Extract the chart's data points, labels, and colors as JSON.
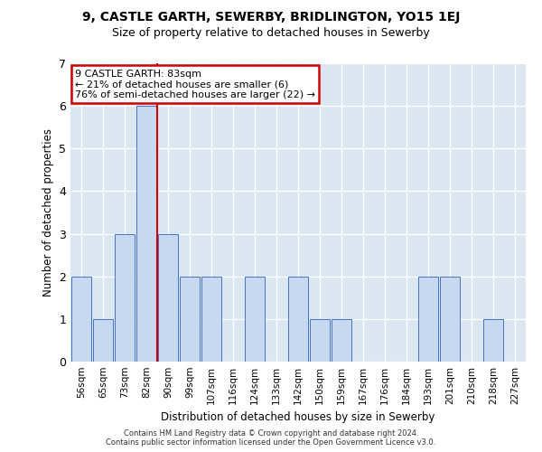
{
  "title1": "9, CASTLE GARTH, SEWERBY, BRIDLINGTON, YO15 1EJ",
  "title2": "Size of property relative to detached houses in Sewerby",
  "xlabel": "Distribution of detached houses by size in Sewerby",
  "ylabel": "Number of detached properties",
  "categories": [
    "56sqm",
    "65sqm",
    "73sqm",
    "82sqm",
    "90sqm",
    "99sqm",
    "107sqm",
    "116sqm",
    "124sqm",
    "133sqm",
    "142sqm",
    "150sqm",
    "159sqm",
    "167sqm",
    "176sqm",
    "184sqm",
    "193sqm",
    "201sqm",
    "210sqm",
    "218sqm",
    "227sqm"
  ],
  "values": [
    2,
    1,
    3,
    6,
    3,
    2,
    2,
    0,
    2,
    0,
    2,
    1,
    1,
    0,
    0,
    0,
    2,
    2,
    0,
    1,
    0
  ],
  "bar_color": "#c6d9f0",
  "bar_edge_color": "#4472c4",
  "vline_x": 3.5,
  "annotation_title": "9 CASTLE GARTH: 83sqm",
  "annotation_line1": "← 21% of detached houses are smaller (6)",
  "annotation_line2": "76% of semi-detached houses are larger (22) →",
  "vline_color": "#cc0000",
  "box_edge_color": "#cc0000",
  "ylim_max": 7,
  "bg_color": "#dce6f1",
  "grid_color": "#ffffff",
  "footnote_line1": "Contains HM Land Registry data © Crown copyright and database right 2024.",
  "footnote_line2": "Contains public sector information licensed under the Open Government Licence v3.0."
}
